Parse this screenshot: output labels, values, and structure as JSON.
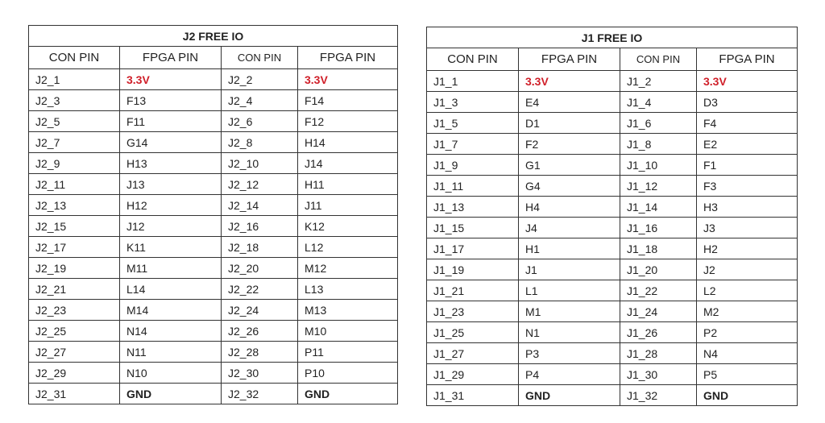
{
  "tables": [
    {
      "title": "J2 FREE IO",
      "headers": [
        "CON PIN",
        "FPGA PIN",
        "CON PIN",
        "FPGA PIN"
      ],
      "rows": [
        [
          "J2_1",
          "3.3V",
          "J2_2",
          "3.3V"
        ],
        [
          "J2_3",
          "F13",
          "J2_4",
          "F14"
        ],
        [
          "J2_5",
          "F11",
          "J2_6",
          "F12"
        ],
        [
          "J2_7",
          "G14",
          "J2_8",
          "H14"
        ],
        [
          "J2_9",
          "H13",
          "J2_10",
          "J14"
        ],
        [
          "J2_11",
          "J13",
          "J2_12",
          "H11"
        ],
        [
          "J2_13",
          "H12",
          "J2_14",
          "J11"
        ],
        [
          "J2_15",
          "J12",
          "J2_16",
          "K12"
        ],
        [
          "J2_17",
          "K11",
          "J2_18",
          "L12"
        ],
        [
          "J2_19",
          "M11",
          "J2_20",
          "M12"
        ],
        [
          "J2_21",
          "L14",
          "J2_22",
          "L13"
        ],
        [
          "J2_23",
          "M14",
          "J2_24",
          "M13"
        ],
        [
          "J2_25",
          "N14",
          "J2_26",
          "M10"
        ],
        [
          "J2_27",
          "N11",
          "J2_28",
          "P11"
        ],
        [
          "J2_29",
          "N10",
          "J2_30",
          "P10"
        ],
        [
          "J2_31",
          "GND",
          "J2_32",
          "GND"
        ]
      ]
    },
    {
      "title": "J1 FREE IO",
      "headers": [
        "CON PIN",
        "FPGA PIN",
        "CON PIN",
        "FPGA PIN"
      ],
      "rows": [
        [
          "J1_1",
          "3.3V",
          "J1_2",
          "3.3V"
        ],
        [
          "J1_3",
          "E4",
          "J1_4",
          "D3"
        ],
        [
          "J1_5",
          "D1",
          "J1_6",
          "F4"
        ],
        [
          "J1_7",
          "F2",
          "J1_8",
          "E2"
        ],
        [
          "J1_9",
          "G1",
          "J1_10",
          "F1"
        ],
        [
          "J1_11",
          "G4",
          "J1_12",
          "F3"
        ],
        [
          "J1_13",
          "H4",
          "J1_14",
          "H3"
        ],
        [
          "J1_15",
          "J4",
          "J1_16",
          "J3"
        ],
        [
          "J1_17",
          "H1",
          "J1_18",
          "H2"
        ],
        [
          "J1_19",
          "J1",
          "J1_20",
          "J2"
        ],
        [
          "J1_21",
          "L1",
          "J1_22",
          "L2"
        ],
        [
          "J1_23",
          "M1",
          "J1_24",
          "M2"
        ],
        [
          "J1_25",
          "N1",
          "J1_26",
          "P2"
        ],
        [
          "J1_27",
          "P3",
          "J1_28",
          "N4"
        ],
        [
          "J1_29",
          "P4",
          "J1_30",
          "P5"
        ],
        [
          "J1_31",
          "GND",
          "J1_32",
          "GND"
        ]
      ]
    }
  ],
  "colors": {
    "power_text": "#d0202a",
    "border": "#333333"
  }
}
